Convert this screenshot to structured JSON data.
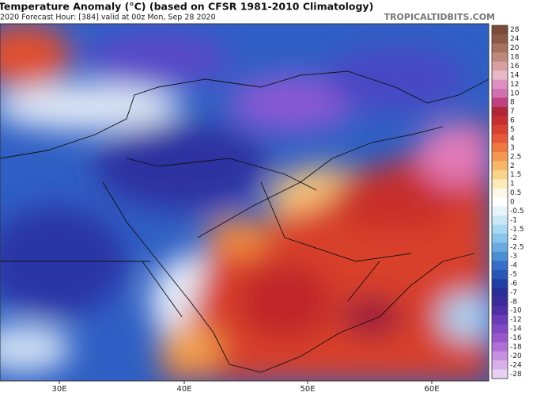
{
  "header": {
    "title": "Temperature Anomaly (°C) (based on CFSR 1981-2010 Climatology)",
    "subtitle": "2020   Forecast Hour: [384]   valid at 00z Mon, Sep 28 2020",
    "watermark": "TROPICALTIDBITS.COM"
  },
  "colorbar": {
    "labels": [
      "28",
      "24",
      "20",
      "18",
      "16",
      "14",
      "12",
      "10",
      "8",
      "7",
      "6",
      "5",
      "4",
      "3",
      "2.5",
      "2",
      "1.5",
      "1",
      "0.5",
      "0",
      "-0.5",
      "-1",
      "-1.5",
      "-2",
      "-2.5",
      "-3",
      "-4",
      "-5",
      "-6",
      "-7",
      "-8",
      "-10",
      "-12",
      "-14",
      "-16",
      "-18",
      "-20",
      "-24",
      "-28"
    ]
  },
  "longitudes": [
    "30E",
    "40E",
    "50E",
    "60E"
  ]
}
